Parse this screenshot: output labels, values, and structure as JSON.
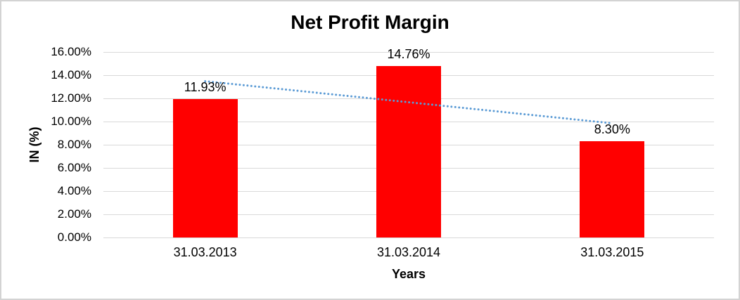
{
  "chart_data": {
    "type": "bar",
    "title": "Net Profit Margin",
    "categories": [
      "31.03.2013",
      "31.03.2014",
      "31.03.2015"
    ],
    "values": [
      11.93,
      14.76,
      8.3
    ],
    "data_labels": [
      "11.93%",
      "14.76%",
      "8.30%"
    ],
    "xlabel": "Years",
    "ylabel": "IN (%)",
    "ylim": [
      0,
      16
    ],
    "ytick_step": 2,
    "ytick_labels": [
      "0.00%",
      "2.00%",
      "4.00%",
      "6.00%",
      "8.00%",
      "10.00%",
      "12.00%",
      "14.00%",
      "16.00%"
    ],
    "grid": true,
    "legend": "none",
    "bar_color": "#ff0000",
    "trendline": {
      "type": "linear",
      "style": "dotted",
      "color": "#5b9bd5",
      "start_value": 13.48,
      "end_value": 9.85
    }
  }
}
